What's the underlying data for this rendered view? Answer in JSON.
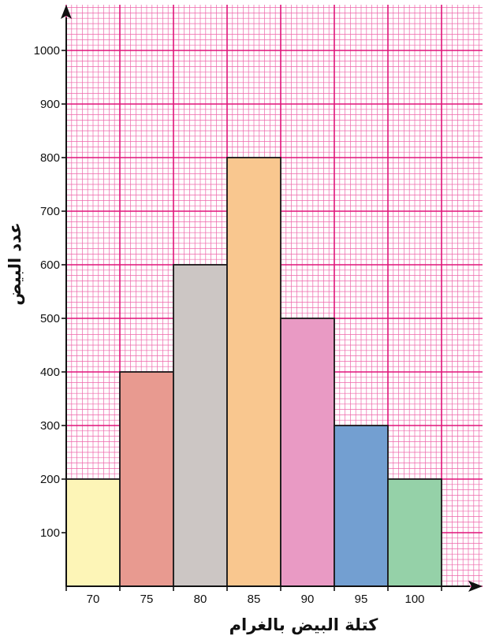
{
  "chart_data": {
    "type": "bar",
    "title": "",
    "xlabel": "كتلة البيض بالغرام",
    "ylabel": "عدد البيض",
    "categories": [
      "70",
      "75",
      "80",
      "85",
      "90",
      "95",
      "100"
    ],
    "values": [
      200,
      400,
      600,
      800,
      500,
      300,
      200
    ],
    "ylim": [
      0,
      1000
    ],
    "yticks": [
      100,
      200,
      300,
      400,
      500,
      600,
      700,
      800,
      900,
      1000
    ],
    "grid": true,
    "legend": "none",
    "colors": {
      "grid_major": "#e0147a",
      "grid_minor": "#ee66aa",
      "background": "#ffffff",
      "axis": "#111111",
      "bars": [
        "#fdf5b7",
        "#e89a90",
        "#ccc6c4",
        "#f9c78f",
        "#e99ac4",
        "#739fd1",
        "#95d1a8"
      ]
    }
  }
}
